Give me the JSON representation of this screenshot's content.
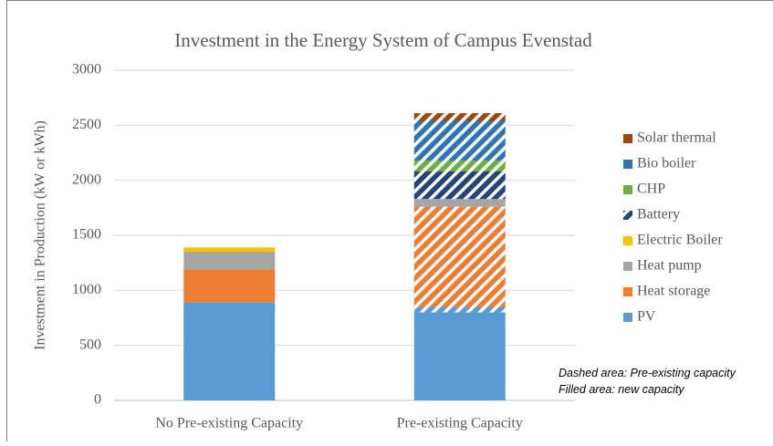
{
  "chart_data": {
    "type": "stacked_bar",
    "title": "Investment in the Energy System of Campus Evenstad",
    "ylabel": "Investment in Production (kW or kWh)",
    "categories": [
      "No Pre-existing Capacity",
      "Pre-existing Capacity"
    ],
    "series": [
      {
        "name": "PV",
        "color": "#5b9bd5",
        "values": [
          890,
          800
        ],
        "hatched_values": [
          0,
          50
        ]
      },
      {
        "name": "Heat storage",
        "color": "#ed7d31",
        "values": [
          300,
          0
        ],
        "hatched_values": [
          0,
          910
        ]
      },
      {
        "name": "Heat pump",
        "color": "#a5a5a5",
        "values": [
          160,
          70
        ],
        "hatched_values": [
          0,
          0
        ]
      },
      {
        "name": "Electric Boiler",
        "color": "#ffc000",
        "values": [
          40,
          0
        ],
        "hatched_values": [
          0,
          0
        ]
      },
      {
        "name": "Battery",
        "color": "#264478",
        "values": [
          0,
          0
        ],
        "hatched_values": [
          0,
          250
        ],
        "legend_hatched": true
      },
      {
        "name": "CHP",
        "color": "#70ad47",
        "values": [
          0,
          0
        ],
        "hatched_values": [
          0,
          100
        ]
      },
      {
        "name": "Bio boiler",
        "color": "#2e75b6",
        "values": [
          0,
          0
        ],
        "hatched_values": [
          0,
          360
        ]
      },
      {
        "name": "Solar thermal",
        "color": "#9e480e",
        "values": [
          0,
          0
        ],
        "hatched_values": [
          0,
          70
        ]
      }
    ],
    "ylim": [
      0,
      3000
    ],
    "yticks": [
      0,
      500,
      1000,
      1500,
      2000,
      2500,
      3000
    ],
    "grid": true,
    "legend": "right",
    "annotations": [
      "Dashed area: Pre-existing capacity",
      "Filled area: new capacity"
    ]
  }
}
